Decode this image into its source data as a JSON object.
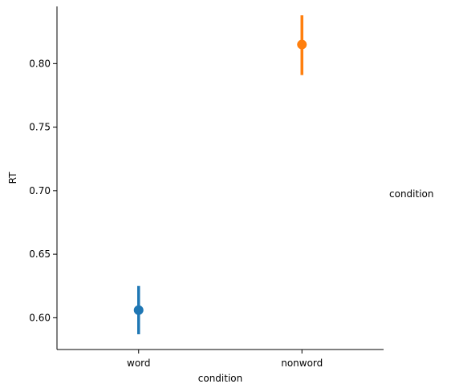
{
  "chart_data": {
    "type": "scatter",
    "xlabel": "condition",
    "ylabel": "RT",
    "legend_title": "condition",
    "legend_placement": "right",
    "grid": false,
    "categories": [
      "word",
      "nonword"
    ],
    "ylim": [
      0.575,
      0.845
    ],
    "yticks": [
      "0.60",
      "0.65",
      "0.70",
      "0.75",
      "0.80"
    ],
    "series": [
      {
        "category": "word",
        "color": "#1f77b4",
        "mean": 0.606,
        "ci": [
          0.587,
          0.625
        ]
      },
      {
        "category": "nonword",
        "color": "#ff7f0e",
        "mean": 0.815,
        "ci": [
          0.791,
          0.838
        ]
      }
    ]
  }
}
